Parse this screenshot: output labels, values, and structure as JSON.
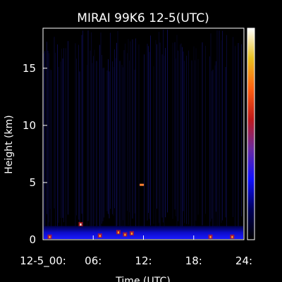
{
  "chart_data": {
    "type": "heatmap",
    "title": "MIRAI 99K6 12-5(UTC)",
    "xlabel": "Time (UTC)",
    "ylabel": "Height (km)",
    "x_range_hours": [
      0,
      24
    ],
    "y_range_km": [
      0,
      18.5
    ],
    "x_ticks": [
      {
        "value": 0,
        "label": "12-5_00:"
      },
      {
        "value": 6,
        "label": "06:"
      },
      {
        "value": 12,
        "label": "12:"
      },
      {
        "value": 18,
        "label": "18:"
      },
      {
        "value": 24,
        "label": "24:"
      }
    ],
    "y_ticks": [
      {
        "value": 0,
        "label": "0"
      },
      {
        "value": 5,
        "label": "5"
      },
      {
        "value": 10,
        "label": "10"
      },
      {
        "value": 15,
        "label": "15"
      }
    ],
    "colorbar": {
      "present": true,
      "stops": [
        "#000000",
        "#00005a",
        "#1010ff",
        "#6a2aa0",
        "#c01a1a",
        "#ff6010",
        "#e8c020",
        "#ffffff"
      ]
    },
    "features": [
      {
        "kind": "low-level layer",
        "time_range_hours": [
          0,
          24
        ],
        "height_km": [
          0,
          1.2
        ]
      },
      {
        "kind": "strong returns",
        "time_hours": [
          0.8,
          4.5,
          6.8,
          9.0,
          9.8,
          10.6,
          20.0,
          22.6
        ],
        "height_km": [
          0.2,
          1.3,
          0.3,
          0.6,
          0.4,
          0.5,
          0.2,
          0.2
        ]
      },
      {
        "kind": "isolated echo",
        "time_hours": 11.8,
        "height_km": 4.8
      }
    ],
    "grid": false,
    "legend": "colorbar-right"
  }
}
